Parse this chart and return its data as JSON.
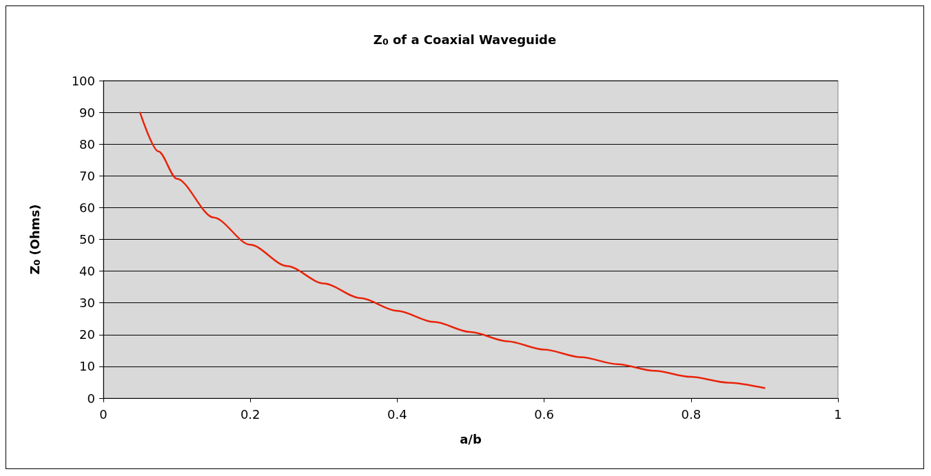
{
  "chart_data": {
    "type": "line",
    "title": "Z$_{0}$ of a Coaxial Waveguide",
    "xlabel": "a/b",
    "ylabel": "Z$_{0}$ (Ohms)",
    "x": [
      0.05,
      0.075,
      0.1,
      0.15,
      0.2,
      0.25,
      0.3,
      0.35,
      0.4,
      0.45,
      0.5,
      0.55,
      0.6,
      0.65,
      0.7,
      0.75,
      0.8,
      0.85,
      0.9
    ],
    "series": [
      {
        "color": "#e8230a",
        "values": [
          89.9,
          77.7,
          69.1,
          56.9,
          48.3,
          41.6,
          36.1,
          31.5,
          27.5,
          24.0,
          20.8,
          17.9,
          15.3,
          12.9,
          10.7,
          8.6,
          6.7,
          4.9,
          3.2
        ]
      }
    ],
    "xlim": [
      0,
      1
    ],
    "xticks": [
      0,
      0.2,
      0.4,
      0.6,
      0.8,
      1
    ],
    "ylim": [
      0,
      100
    ],
    "yticks": [
      0,
      10,
      20,
      30,
      40,
      50,
      60,
      70,
      80,
      90,
      100
    ],
    "grid": "y",
    "marker": "none",
    "line_style": "solid"
  }
}
